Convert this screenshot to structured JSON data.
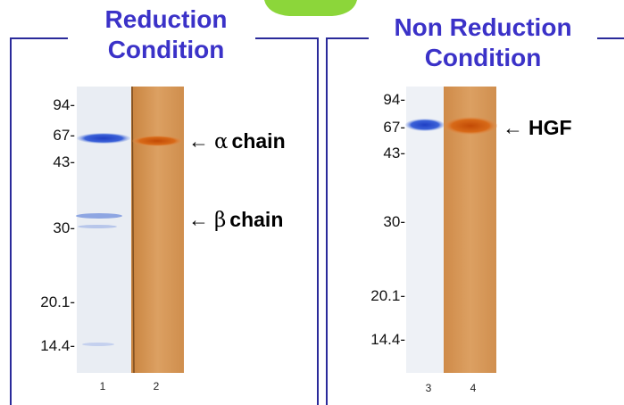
{
  "left_panel": {
    "title_line1": "Reduction",
    "title_line2": "Condition",
    "markers": [
      "94-",
      "67-",
      "43-",
      "30-",
      "20.1-",
      "14.4-"
    ],
    "lanes": [
      "1",
      "2"
    ],
    "alpha_arrow": "←",
    "alpha_symbol": "α",
    "alpha_text": "chain",
    "beta_arrow": "←",
    "beta_symbol": "β",
    "beta_text": "chain"
  },
  "right_panel": {
    "title_line1": "Non Reduction",
    "title_line2": "Condition",
    "markers": [
      "94-",
      "67-",
      "43-",
      "30-",
      "20.1-",
      "14.4-"
    ],
    "lanes": [
      "3",
      "4"
    ],
    "hgf_arrow": "←",
    "hgf_text": "HGF"
  },
  "colors": {
    "title": "#3b32c8",
    "frame": "#2a2a9a",
    "coomassie_band": "#2a4fd0",
    "silver_band": "#d06010",
    "silver_lane": "#d89a58",
    "green_tab": "#8cd63a"
  }
}
